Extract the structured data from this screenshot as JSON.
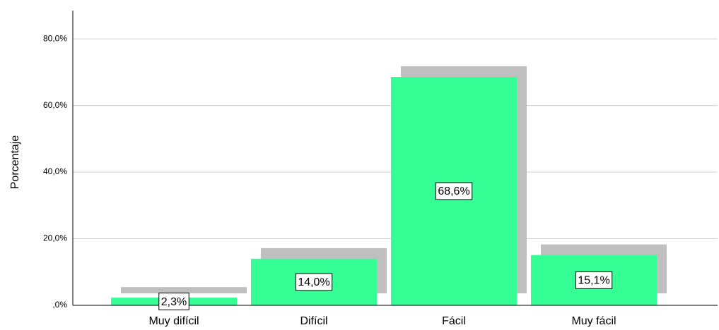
{
  "chart_data": {
    "type": "bar",
    "y_label": "Porcentaje",
    "categories": [
      "Muy difícil",
      "Difícil",
      "Fácil",
      "Muy fácil"
    ],
    "values": [
      2.3,
      14.0,
      68.6,
      15.1
    ],
    "value_labels": [
      "2,3%",
      "14,0%",
      "68,6%",
      "15,1%"
    ],
    "color": "#35fe95",
    "shadow_color": "#bfbfbf",
    "ylim": [
      0,
      88.5
    ],
    "yticks": [
      {
        "value": 0,
        "label": ",0%"
      },
      {
        "value": 20,
        "label": "20,0%"
      },
      {
        "value": 40,
        "label": "40,0%"
      },
      {
        "value": 60,
        "label": "60,0%"
      },
      {
        "value": 80,
        "label": "80,0%"
      }
    ],
    "grid": true
  }
}
